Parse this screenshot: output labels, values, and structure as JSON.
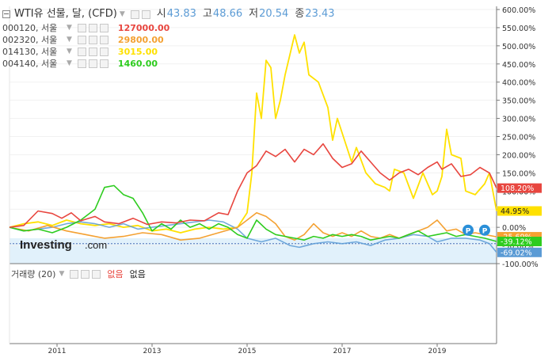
{
  "header": {
    "symbol_title": "WTI유 선물, 달, (CFD)",
    "open_label": "시",
    "open_value": "43.83",
    "high_label": "고",
    "high_value": "48.66",
    "low_label": "저",
    "low_value": "20.54",
    "close_label": "종",
    "close_value": "23.43"
  },
  "legend_items": [
    {
      "symbol": "000120, 서울",
      "price": "127000.00",
      "color": "#e8463f"
    },
    {
      "symbol": "002320, 서울",
      "price": "29800.00",
      "color": "#f4a132"
    },
    {
      "symbol": "014130, 서울",
      "price": "3015.00",
      "color": "#ffe100"
    },
    {
      "symbol": "004140, 서울",
      "price": "1460.00",
      "color": "#2ecc1f"
    }
  ],
  "volume": {
    "label": "거래량 (20)",
    "value1": "없음",
    "value2": "없음"
  },
  "logo": {
    "brand": "Investing",
    "suffix": ".com"
  },
  "markers": [
    "P",
    "P"
  ],
  "chart_data": {
    "type": "line",
    "ylabel": "",
    "ylim": [
      -100,
      600
    ],
    "y_ticks": [
      "600.00%",
      "550.00%",
      "500.00%",
      "450.00%",
      "400.00%",
      "350.00%",
      "300.00%",
      "250.00%",
      "200.00%",
      "150.00%",
      "100.00%",
      "50.00%",
      "0.00%",
      "-50.00%",
      "-100.00%"
    ],
    "y_tick_values": [
      600,
      550,
      500,
      450,
      400,
      350,
      300,
      250,
      200,
      150,
      100,
      50,
      0,
      -50,
      -100
    ],
    "x_ticks": [
      "2011",
      "2013",
      "2015",
      "2017",
      "2019"
    ],
    "x_tick_values": [
      2011,
      2013,
      2015,
      2017,
      2019
    ],
    "xlim": [
      2010.0,
      2020.25
    ],
    "series": [
      {
        "name": "000120, 서울",
        "color": "#e8463f",
        "last_label": "108.20%",
        "values": [
          [
            2010.0,
            0
          ],
          [
            2010.3,
            5
          ],
          [
            2010.6,
            45
          ],
          [
            2010.9,
            38
          ],
          [
            2011.1,
            25
          ],
          [
            2011.3,
            40
          ],
          [
            2011.5,
            18
          ],
          [
            2011.8,
            30
          ],
          [
            2012.0,
            15
          ],
          [
            2012.3,
            10
          ],
          [
            2012.6,
            25
          ],
          [
            2012.9,
            8
          ],
          [
            2013.2,
            15
          ],
          [
            2013.5,
            12
          ],
          [
            2013.8,
            20
          ],
          [
            2014.1,
            18
          ],
          [
            2014.4,
            40
          ],
          [
            2014.6,
            35
          ],
          [
            2014.8,
            100
          ],
          [
            2015.0,
            150
          ],
          [
            2015.2,
            170
          ],
          [
            2015.4,
            210
          ],
          [
            2015.6,
            195
          ],
          [
            2015.8,
            215
          ],
          [
            2016.0,
            180
          ],
          [
            2016.2,
            215
          ],
          [
            2016.4,
            200
          ],
          [
            2016.6,
            230
          ],
          [
            2016.8,
            190
          ],
          [
            2017.0,
            165
          ],
          [
            2017.2,
            175
          ],
          [
            2017.4,
            210
          ],
          [
            2017.6,
            180
          ],
          [
            2017.8,
            150
          ],
          [
            2018.0,
            130
          ],
          [
            2018.2,
            150
          ],
          [
            2018.4,
            160
          ],
          [
            2018.6,
            145
          ],
          [
            2018.8,
            165
          ],
          [
            2019.0,
            180
          ],
          [
            2019.1,
            160
          ],
          [
            2019.3,
            175
          ],
          [
            2019.5,
            140
          ],
          [
            2019.7,
            145
          ],
          [
            2019.9,
            165
          ],
          [
            2020.1,
            150
          ],
          [
            2020.25,
            108
          ]
        ]
      },
      {
        "name": "002320, 서울",
        "color": "#f4a132",
        "last_label": "-25.69%",
        "values": [
          [
            2010.0,
            0
          ],
          [
            2010.4,
            -10
          ],
          [
            2010.8,
            5
          ],
          [
            2011.2,
            -10
          ],
          [
            2011.6,
            -20
          ],
          [
            2012.0,
            -30
          ],
          [
            2012.4,
            -25
          ],
          [
            2012.8,
            -15
          ],
          [
            2013.2,
            -20
          ],
          [
            2013.6,
            -35
          ],
          [
            2014.0,
            -30
          ],
          [
            2014.4,
            -15
          ],
          [
            2014.8,
            0
          ],
          [
            2015.0,
            20
          ],
          [
            2015.2,
            40
          ],
          [
            2015.4,
            30
          ],
          [
            2015.6,
            10
          ],
          [
            2015.8,
            -25
          ],
          [
            2016.0,
            -35
          ],
          [
            2016.2,
            -20
          ],
          [
            2016.4,
            10
          ],
          [
            2016.6,
            -15
          ],
          [
            2016.8,
            -25
          ],
          [
            2017.0,
            -15
          ],
          [
            2017.2,
            -25
          ],
          [
            2017.4,
            -10
          ],
          [
            2017.6,
            -25
          ],
          [
            2017.8,
            -30
          ],
          [
            2018.0,
            -20
          ],
          [
            2018.2,
            -30
          ],
          [
            2018.4,
            -20
          ],
          [
            2018.6,
            -10
          ],
          [
            2018.8,
            0
          ],
          [
            2019.0,
            20
          ],
          [
            2019.2,
            -10
          ],
          [
            2019.4,
            -5
          ],
          [
            2019.6,
            -20
          ],
          [
            2019.8,
            -15
          ],
          [
            2020.0,
            -20
          ],
          [
            2020.25,
            -26
          ]
        ]
      },
      {
        "name": "014130, 서울",
        "color": "#ffe100",
        "last_label": "44.95%",
        "values": [
          [
            2010.0,
            0
          ],
          [
            2010.3,
            10
          ],
          [
            2010.6,
            15
          ],
          [
            2010.9,
            5
          ],
          [
            2011.2,
            20
          ],
          [
            2011.5,
            10
          ],
          [
            2011.8,
            5
          ],
          [
            2012.1,
            10
          ],
          [
            2012.4,
            0
          ],
          [
            2012.7,
            5
          ],
          [
            2013.0,
            -10
          ],
          [
            2013.3,
            -5
          ],
          [
            2013.6,
            -15
          ],
          [
            2013.9,
            -5
          ],
          [
            2014.2,
            0
          ],
          [
            2014.5,
            -5
          ],
          [
            2014.8,
            0
          ],
          [
            2015.0,
            40
          ],
          [
            2015.1,
            150
          ],
          [
            2015.2,
            370
          ],
          [
            2015.3,
            300
          ],
          [
            2015.4,
            460
          ],
          [
            2015.5,
            440
          ],
          [
            2015.6,
            300
          ],
          [
            2015.7,
            350
          ],
          [
            2015.8,
            420
          ],
          [
            2016.0,
            530
          ],
          [
            2016.1,
            480
          ],
          [
            2016.2,
            510
          ],
          [
            2016.3,
            420
          ],
          [
            2016.5,
            400
          ],
          [
            2016.7,
            330
          ],
          [
            2016.8,
            240
          ],
          [
            2016.9,
            300
          ],
          [
            2017.0,
            260
          ],
          [
            2017.2,
            180
          ],
          [
            2017.3,
            220
          ],
          [
            2017.5,
            150
          ],
          [
            2017.7,
            120
          ],
          [
            2017.9,
            110
          ],
          [
            2018.0,
            100
          ],
          [
            2018.1,
            160
          ],
          [
            2018.3,
            150
          ],
          [
            2018.5,
            80
          ],
          [
            2018.7,
            150
          ],
          [
            2018.9,
            90
          ],
          [
            2019.0,
            100
          ],
          [
            2019.1,
            140
          ],
          [
            2019.2,
            270
          ],
          [
            2019.3,
            200
          ],
          [
            2019.5,
            190
          ],
          [
            2019.6,
            100
          ],
          [
            2019.8,
            90
          ],
          [
            2020.0,
            120
          ],
          [
            2020.1,
            150
          ],
          [
            2020.25,
            45
          ]
        ]
      },
      {
        "name": "004140, 서울",
        "color": "#2ecc1f",
        "last_label": "-39.12%",
        "values": [
          [
            2010.0,
            0
          ],
          [
            2010.3,
            -10
          ],
          [
            2010.6,
            -5
          ],
          [
            2010.9,
            -15
          ],
          [
            2011.2,
            0
          ],
          [
            2011.5,
            20
          ],
          [
            2011.8,
            50
          ],
          [
            2012.0,
            110
          ],
          [
            2012.2,
            115
          ],
          [
            2012.4,
            90
          ],
          [
            2012.6,
            80
          ],
          [
            2012.8,
            40
          ],
          [
            2013.0,
            -10
          ],
          [
            2013.2,
            10
          ],
          [
            2013.4,
            -5
          ],
          [
            2013.6,
            20
          ],
          [
            2013.8,
            0
          ],
          [
            2014.0,
            10
          ],
          [
            2014.2,
            -5
          ],
          [
            2014.4,
            10
          ],
          [
            2014.6,
            0
          ],
          [
            2014.8,
            -20
          ],
          [
            2015.0,
            -30
          ],
          [
            2015.2,
            20
          ],
          [
            2015.4,
            -5
          ],
          [
            2015.6,
            -20
          ],
          [
            2015.8,
            -25
          ],
          [
            2016.0,
            -30
          ],
          [
            2016.2,
            -35
          ],
          [
            2016.4,
            -25
          ],
          [
            2016.6,
            -30
          ],
          [
            2016.8,
            -20
          ],
          [
            2017.0,
            -25
          ],
          [
            2017.2,
            -20
          ],
          [
            2017.4,
            -25
          ],
          [
            2017.6,
            -35
          ],
          [
            2017.8,
            -30
          ],
          [
            2018.0,
            -25
          ],
          [
            2018.2,
            -30
          ],
          [
            2018.4,
            -20
          ],
          [
            2018.6,
            -10
          ],
          [
            2018.8,
            -25
          ],
          [
            2019.0,
            -20
          ],
          [
            2019.2,
            -15
          ],
          [
            2019.4,
            -25
          ],
          [
            2019.6,
            -20
          ],
          [
            2019.8,
            -25
          ],
          [
            2020.0,
            -30
          ],
          [
            2020.25,
            -39
          ]
        ]
      },
      {
        "name": "WTI유 선물, 달, (CFD)",
        "color": "#5b9bd5",
        "last_label": "-69.02%",
        "values": [
          [
            2010.0,
            0
          ],
          [
            2010.3,
            -10
          ],
          [
            2010.6,
            -5
          ],
          [
            2010.9,
            0
          ],
          [
            2011.2,
            10
          ],
          [
            2011.5,
            15
          ],
          [
            2011.8,
            10
          ],
          [
            2012.1,
            0
          ],
          [
            2012.4,
            10
          ],
          [
            2012.7,
            -5
          ],
          [
            2013.0,
            0
          ],
          [
            2013.3,
            5
          ],
          [
            2013.6,
            10
          ],
          [
            2013.9,
            15
          ],
          [
            2014.2,
            20
          ],
          [
            2014.5,
            15
          ],
          [
            2014.8,
            -5
          ],
          [
            2015.0,
            -30
          ],
          [
            2015.3,
            -40
          ],
          [
            2015.6,
            -30
          ],
          [
            2015.9,
            -50
          ],
          [
            2016.1,
            -55
          ],
          [
            2016.4,
            -45
          ],
          [
            2016.7,
            -40
          ],
          [
            2017.0,
            -45
          ],
          [
            2017.3,
            -40
          ],
          [
            2017.6,
            -50
          ],
          [
            2017.9,
            -35
          ],
          [
            2018.2,
            -30
          ],
          [
            2018.5,
            -20
          ],
          [
            2018.8,
            -25
          ],
          [
            2019.0,
            -40
          ],
          [
            2019.3,
            -30
          ],
          [
            2019.6,
            -30
          ],
          [
            2019.9,
            -35
          ],
          [
            2020.1,
            -45
          ],
          [
            2020.25,
            -69
          ]
        ]
      }
    ]
  }
}
